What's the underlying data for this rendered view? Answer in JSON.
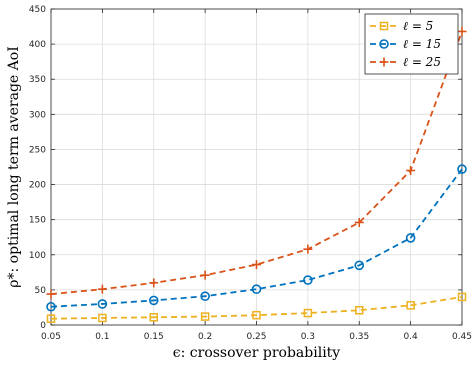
{
  "chart_data": {
    "type": "line",
    "xlabel": "ϵ: crossover probability",
    "ylabel": "ρ*: optimal long term average AoI",
    "x": [
      0.05,
      0.1,
      0.15,
      0.2,
      0.25,
      0.3,
      0.35,
      0.4,
      0.45
    ],
    "x_ticks": [
      "0.05",
      "0.1",
      "0.15",
      "0.2",
      "0.25",
      "0.3",
      "0.35",
      "0.4",
      "0.45"
    ],
    "y_ticks": [
      "0",
      "50",
      "100",
      "150",
      "200",
      "250",
      "300",
      "350",
      "400",
      "450"
    ],
    "xlim": [
      0.05,
      0.45
    ],
    "ylim": [
      0,
      450
    ],
    "grid": true,
    "legend_position": "top-right",
    "series": [
      {
        "name": "ℓ = 5",
        "color": "#EDB120",
        "marker": "square",
        "values": [
          9,
          10,
          11,
          12,
          14,
          17,
          21,
          28,
          40
        ]
      },
      {
        "name": "ℓ = 15",
        "color": "#0072BD",
        "marker": "circle",
        "values": [
          26,
          30,
          35,
          41,
          51,
          64,
          85,
          124,
          222
        ]
      },
      {
        "name": "ℓ = 25",
        "color": "#D95319",
        "marker": "plus",
        "values": [
          44,
          51,
          60,
          71,
          86,
          108,
          146,
          220,
          418
        ]
      }
    ]
  }
}
